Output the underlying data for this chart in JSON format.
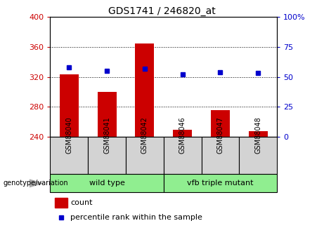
{
  "title": "GDS1741 / 246820_at",
  "samples": [
    "GSM88040",
    "GSM88041",
    "GSM88042",
    "GSM88046",
    "GSM88047",
    "GSM88048"
  ],
  "count_values": [
    323,
    300,
    365,
    249,
    276,
    247
  ],
  "percentile_values": [
    58,
    55,
    57,
    52,
    54,
    53
  ],
  "count_baseline": 240,
  "ylim_left": [
    240,
    400
  ],
  "ylim_right": [
    0,
    100
  ],
  "yticks_left": [
    240,
    280,
    320,
    360,
    400
  ],
  "yticks_right": [
    0,
    25,
    50,
    75,
    100
  ],
  "bar_color": "#cc0000",
  "dot_color": "#0000cc",
  "bar_width": 0.5,
  "group1_label": "wild type",
  "group2_label": "vfb triple mutant",
  "group1_indices": [
    0,
    1,
    2
  ],
  "group2_indices": [
    3,
    4,
    5
  ],
  "green_color": "#90ee90",
  "gray_color": "#d3d3d3",
  "legend_count_color": "#cc0000",
  "legend_percentile_color": "#0000cc",
  "tick_label_color_left": "#cc0000",
  "tick_label_color_right": "#0000cc",
  "title_fontsize": 10,
  "tick_fontsize": 8,
  "label_fontsize": 7.5,
  "legend_fontsize": 8
}
